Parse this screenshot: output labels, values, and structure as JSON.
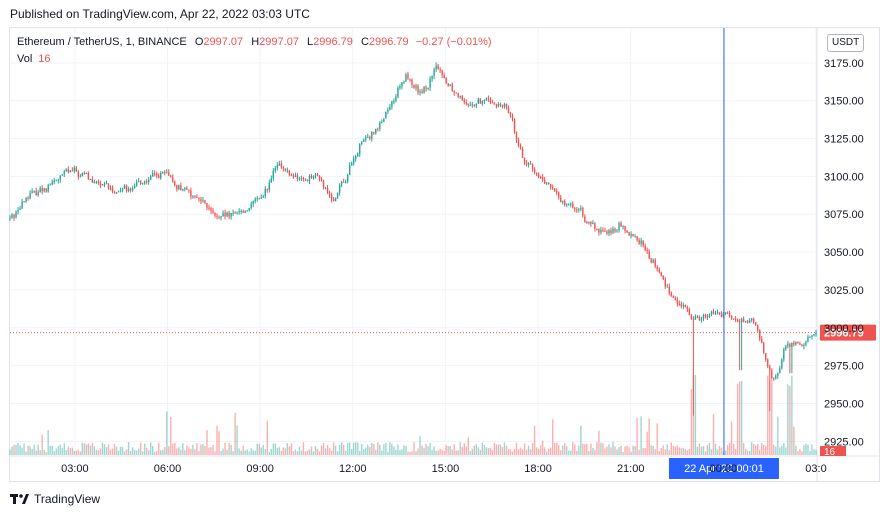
{
  "header": {
    "published": "Published on TradingView.com, Apr 22, 2022 03:03 UTC"
  },
  "legend": {
    "symbol": "Ethereum / TetherUS, 1, BINANCE",
    "open_label": "O",
    "open": "2997.07",
    "high_label": "H",
    "high": "2997.07",
    "low_label": "L",
    "low": "2996.79",
    "close_label": "C",
    "close": "2996.79",
    "change": "−0.27 (−0.01%)",
    "vol_label": "Vol",
    "vol_value": "16"
  },
  "toolbar": {
    "currency": "USDT"
  },
  "footer": {
    "brand": "TradingView",
    "logo_icon": "tradingview-logo-icon"
  },
  "colors": {
    "up": "#26a69a",
    "down": "#ef5350",
    "crosshair": "#2962ff",
    "price_label": "#ef5350",
    "time_label": "#2962ff"
  },
  "chart_data": {
    "type": "candlestick",
    "ylim": [
      2916,
      3198
    ],
    "y_ticks": [
      "2925.00",
      "2950.00",
      "2975.00",
      "3000.00",
      "3025.00",
      "3050.00",
      "3075.00",
      "3100.00",
      "3125.00",
      "3150.00",
      "3175.00"
    ],
    "x_ticks": [
      "03:00",
      "06:00",
      "09:00",
      "12:00",
      "15:00",
      "18:00",
      "21:00",
      "00:00",
      "03:0"
    ],
    "last_price": 2996.79,
    "last_price_label": "2996.79",
    "last_volume_label": "16",
    "crosshair_time_label": "22 Apr '22   00:01",
    "crosshair_hour": 24.02,
    "start_hour": 0.9,
    "end_hour": 27.0,
    "anchors": [
      [
        0.9,
        3072
      ],
      [
        1.5,
        3088
      ],
      [
        2.2,
        3095
      ],
      [
        2.8,
        3104
      ],
      [
        3.5,
        3098
      ],
      [
        4.2,
        3090
      ],
      [
        5.0,
        3095
      ],
      [
        5.8,
        3103
      ],
      [
        6.3,
        3093
      ],
      [
        7.0,
        3085
      ],
      [
        7.6,
        3072
      ],
      [
        8.4,
        3077
      ],
      [
        9.0,
        3085
      ],
      [
        9.5,
        3107
      ],
      [
        10.2,
        3098
      ],
      [
        10.8,
        3100
      ],
      [
        11.3,
        3085
      ],
      [
        11.7,
        3098
      ],
      [
        12.2,
        3120
      ],
      [
        12.8,
        3135
      ],
      [
        13.3,
        3150
      ],
      [
        13.7,
        3168
      ],
      [
        14.2,
        3152
      ],
      [
        14.7,
        3172
      ],
      [
        15.2,
        3158
      ],
      [
        15.8,
        3148
      ],
      [
        16.4,
        3150
      ],
      [
        17.0,
        3145
      ],
      [
        17.5,
        3110
      ],
      [
        18.0,
        3100
      ],
      [
        18.7,
        3085
      ],
      [
        19.3,
        3078
      ],
      [
        19.9,
        3062
      ],
      [
        20.6,
        3068
      ],
      [
        21.2,
        3058
      ],
      [
        21.8,
        3040
      ],
      [
        22.4,
        3018
      ],
      [
        23.0,
        3007
      ],
      [
        23.8,
        3010
      ],
      [
        24.5,
        3002
      ],
      [
        24.9,
        3007
      ],
      [
        25.6,
        2962
      ],
      [
        26.0,
        2990
      ],
      [
        26.4,
        2988
      ],
      [
        27.0,
        2996.79
      ]
    ],
    "spikes": [
      {
        "hour": 23.02,
        "low": 2942
      },
      {
        "hour": 24.55,
        "low": 2972
      },
      {
        "hour": 25.5,
        "low": 2945
      },
      {
        "hour": 26.18,
        "low": 2970
      }
    ]
  }
}
